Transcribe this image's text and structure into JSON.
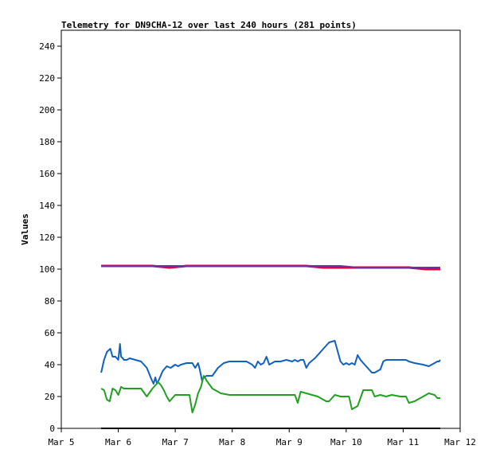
{
  "chart_data": {
    "type": "line",
    "title": "Telemetry for DN9CHA-12 over last 240 hours (281 points)",
    "xlabel": "",
    "ylabel": "Values",
    "ylim": [
      0,
      250
    ],
    "xlim": [
      "Mar 5",
      "Mar 12"
    ],
    "x_ticks": [
      "Mar 5",
      "Mar 6",
      "Mar 7",
      "Mar 8",
      "Mar 9",
      "Mar 10",
      "Mar 11",
      "Mar 12"
    ],
    "y_ticks": [
      0,
      20,
      40,
      60,
      80,
      100,
      120,
      140,
      160,
      180,
      200,
      220,
      240
    ],
    "grid": false,
    "legend": "none",
    "series": [
      {
        "color": "#e00040",
        "x": [
          5.7,
          6.0,
          6.3,
          6.6,
          6.9,
          7.2,
          7.5,
          7.8,
          8.1,
          8.4,
          8.7,
          9.0,
          9.3,
          9.6,
          9.9,
          10.2,
          10.5,
          10.8,
          11.1,
          11.4,
          11.65
        ],
        "y": [
          102,
          102,
          102,
          102,
          101,
          102,
          102,
          102,
          102,
          102,
          102,
          102,
          102,
          101,
          101,
          101,
          101,
          101,
          101,
          100,
          100
        ]
      },
      {
        "color": "#7030a0",
        "x": [
          5.7,
          6.0,
          6.3,
          6.6,
          6.9,
          7.2,
          7.5,
          7.8,
          8.1,
          8.4,
          8.7,
          9.0,
          9.3,
          9.6,
          9.9,
          10.2,
          10.5,
          10.8,
          11.1,
          11.4,
          11.65
        ],
        "y": [
          102,
          102,
          102,
          102,
          102,
          102,
          102,
          102,
          102,
          102,
          102,
          102,
          102,
          102,
          102,
          101,
          101,
          101,
          101,
          101,
          101
        ]
      },
      {
        "color": "#1060c0",
        "x": [
          5.7,
          5.75,
          5.8,
          5.86,
          5.9,
          5.95,
          6.0,
          6.03,
          6.05,
          6.08,
          6.1,
          6.15,
          6.2,
          6.3,
          6.4,
          6.5,
          6.58,
          6.62,
          6.65,
          6.68,
          6.72,
          6.78,
          6.85,
          6.92,
          7.0,
          7.05,
          7.1,
          7.2,
          7.3,
          7.35,
          7.4,
          7.43,
          7.47,
          7.5,
          7.55,
          7.65,
          7.75,
          7.85,
          7.95,
          8.1,
          8.25,
          8.35,
          8.4,
          8.45,
          8.5,
          8.55,
          8.6,
          8.65,
          8.75,
          8.85,
          8.95,
          9.05,
          9.1,
          9.15,
          9.2,
          9.25,
          9.3,
          9.35,
          9.45,
          9.6,
          9.7,
          9.8,
          9.9,
          9.95,
          10.0,
          10.05,
          10.1,
          10.15,
          10.2,
          10.25,
          10.3,
          10.4,
          10.45,
          10.5,
          10.55,
          10.6,
          10.65,
          10.7,
          10.75,
          10.85,
          10.95,
          11.05,
          11.1,
          11.2,
          11.35,
          11.45,
          11.55,
          11.6,
          11.63,
          11.65
        ],
        "y": [
          35,
          43,
          48,
          50,
          45,
          45,
          43,
          53,
          45,
          44,
          43,
          43,
          44,
          43,
          42,
          38,
          31,
          28,
          32,
          28,
          31,
          36,
          39,
          38,
          40,
          39,
          40,
          41,
          41,
          38,
          41,
          37,
          30,
          32,
          33,
          33,
          38,
          41,
          42,
          42,
          42,
          40,
          38,
          42,
          40,
          41,
          45,
          40,
          42,
          42,
          43,
          42,
          43,
          42,
          43,
          43,
          38,
          41,
          44,
          50,
          54,
          55,
          42,
          40,
          41,
          40,
          41,
          40,
          46,
          43,
          41,
          37,
          35,
          35,
          36,
          37,
          42,
          43,
          43,
          43,
          43,
          43,
          42,
          41,
          40,
          39,
          41,
          42,
          42,
          43
        ]
      },
      {
        "color": "#20a020",
        "x": [
          5.7,
          5.75,
          5.8,
          5.85,
          5.9,
          5.95,
          6.0,
          6.05,
          6.1,
          6.2,
          6.3,
          6.4,
          6.5,
          6.6,
          6.65,
          6.7,
          6.75,
          6.8,
          6.85,
          6.9,
          7.0,
          7.1,
          7.2,
          7.25,
          7.3,
          7.35,
          7.4,
          7.45,
          7.5,
          7.55,
          7.65,
          7.8,
          7.95,
          8.1,
          8.3,
          8.5,
          8.7,
          8.9,
          9.05,
          9.1,
          9.15,
          9.2,
          9.3,
          9.5,
          9.6,
          9.65,
          9.7,
          9.8,
          9.9,
          10.0,
          10.05,
          10.1,
          10.2,
          10.3,
          10.4,
          10.45,
          10.5,
          10.6,
          10.7,
          10.8,
          10.95,
          11.05,
          11.1,
          11.2,
          11.35,
          11.45,
          11.55,
          11.6,
          11.63,
          11.65
        ],
        "y": [
          25,
          24,
          18,
          17,
          25,
          24,
          21,
          26,
          25,
          25,
          25,
          25,
          20,
          25,
          27,
          29,
          27,
          24,
          20,
          17,
          21,
          21,
          21,
          21,
          10,
          15,
          22,
          26,
          33,
          30,
          25,
          22,
          21,
          21,
          21,
          21,
          21,
          21,
          21,
          21,
          16,
          23,
          22,
          20,
          18,
          17,
          17,
          21,
          20,
          20,
          20,
          12,
          14,
          24,
          24,
          24,
          20,
          21,
          20,
          21,
          20,
          20,
          16,
          17,
          20,
          22,
          21,
          19,
          19,
          19
        ]
      },
      {
        "color": "#000000",
        "x": [
          5.7,
          11.65
        ],
        "y": [
          0,
          0
        ]
      }
    ]
  }
}
